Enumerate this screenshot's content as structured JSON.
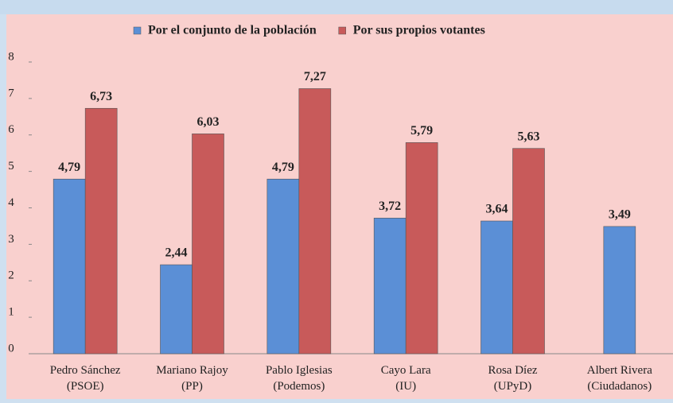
{
  "chart_data": {
    "type": "bar",
    "categories": [
      "Pedro Sánchez\n(PSOE)",
      "Mariano Rajoy\n(PP)",
      "Pablo Iglesias\n(Podemos)",
      "Cayo Lara\n(IU)",
      "Rosa Díez\n(UPyD)",
      "Albert Rivera\n(Ciudadanos)"
    ],
    "series": [
      {
        "name": "Por el conjunto de la población",
        "color": "#5b8fd6",
        "values": [
          4.79,
          2.44,
          4.79,
          3.72,
          3.64,
          3.49
        ],
        "value_labels": [
          "4,79",
          "2,44",
          "4,79",
          "3,72",
          "3,64",
          "3,49"
        ]
      },
      {
        "name": "Por sus propios votantes",
        "color": "#c85a5a",
        "values": [
          6.73,
          6.03,
          7.27,
          5.79,
          5.63,
          null
        ],
        "value_labels": [
          "6,73",
          "6,03",
          "7,27",
          "5,79",
          "5,63",
          null
        ]
      }
    ],
    "ylim": [
      0,
      8
    ],
    "yticks": [
      0,
      1,
      2,
      3,
      4,
      5,
      6,
      7,
      8
    ],
    "legend": "top"
  }
}
